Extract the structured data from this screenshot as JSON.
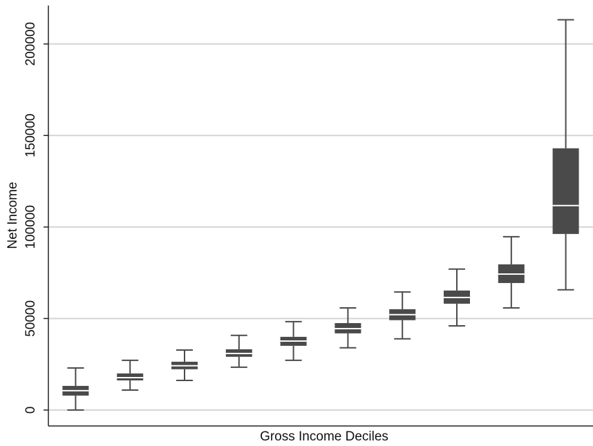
{
  "chart_data": {
    "type": "box",
    "x_label": "Gross Income Deciles",
    "y_label": "Net Income",
    "color": "#4a4a4a",
    "median_color": "#ffffff",
    "grid": true,
    "ylim": [
      -8700,
      221000
    ],
    "yticks": [
      0,
      50000,
      100000,
      150000,
      200000
    ],
    "boxes": [
      {
        "low": 0,
        "q1": 7900,
        "median": 10600,
        "q3": 13200,
        "high": 23000
      },
      {
        "low": 10900,
        "q1": 16200,
        "median": 17700,
        "q3": 20000,
        "high": 27200
      },
      {
        "low": 16200,
        "q1": 22300,
        "median": 24200,
        "q3": 26400,
        "high": 32800
      },
      {
        "low": 23400,
        "q1": 29100,
        "median": 30900,
        "q3": 33200,
        "high": 40800
      },
      {
        "low": 27200,
        "q1": 35100,
        "median": 37700,
        "q3": 40000,
        "high": 48300
      },
      {
        "low": 34000,
        "q1": 41900,
        "median": 44500,
        "q3": 47500,
        "high": 55800
      },
      {
        "low": 38900,
        "q1": 49100,
        "median": 52100,
        "q3": 55100,
        "high": 64500
      },
      {
        "low": 46000,
        "q1": 58100,
        "median": 61500,
        "q3": 65300,
        "high": 77000
      },
      {
        "low": 55800,
        "q1": 69400,
        "median": 74300,
        "q3": 79600,
        "high": 94700
      },
      {
        "low": 65700,
        "q1": 96200,
        "median": 111700,
        "q3": 143000,
        "high": 213200
      }
    ]
  }
}
